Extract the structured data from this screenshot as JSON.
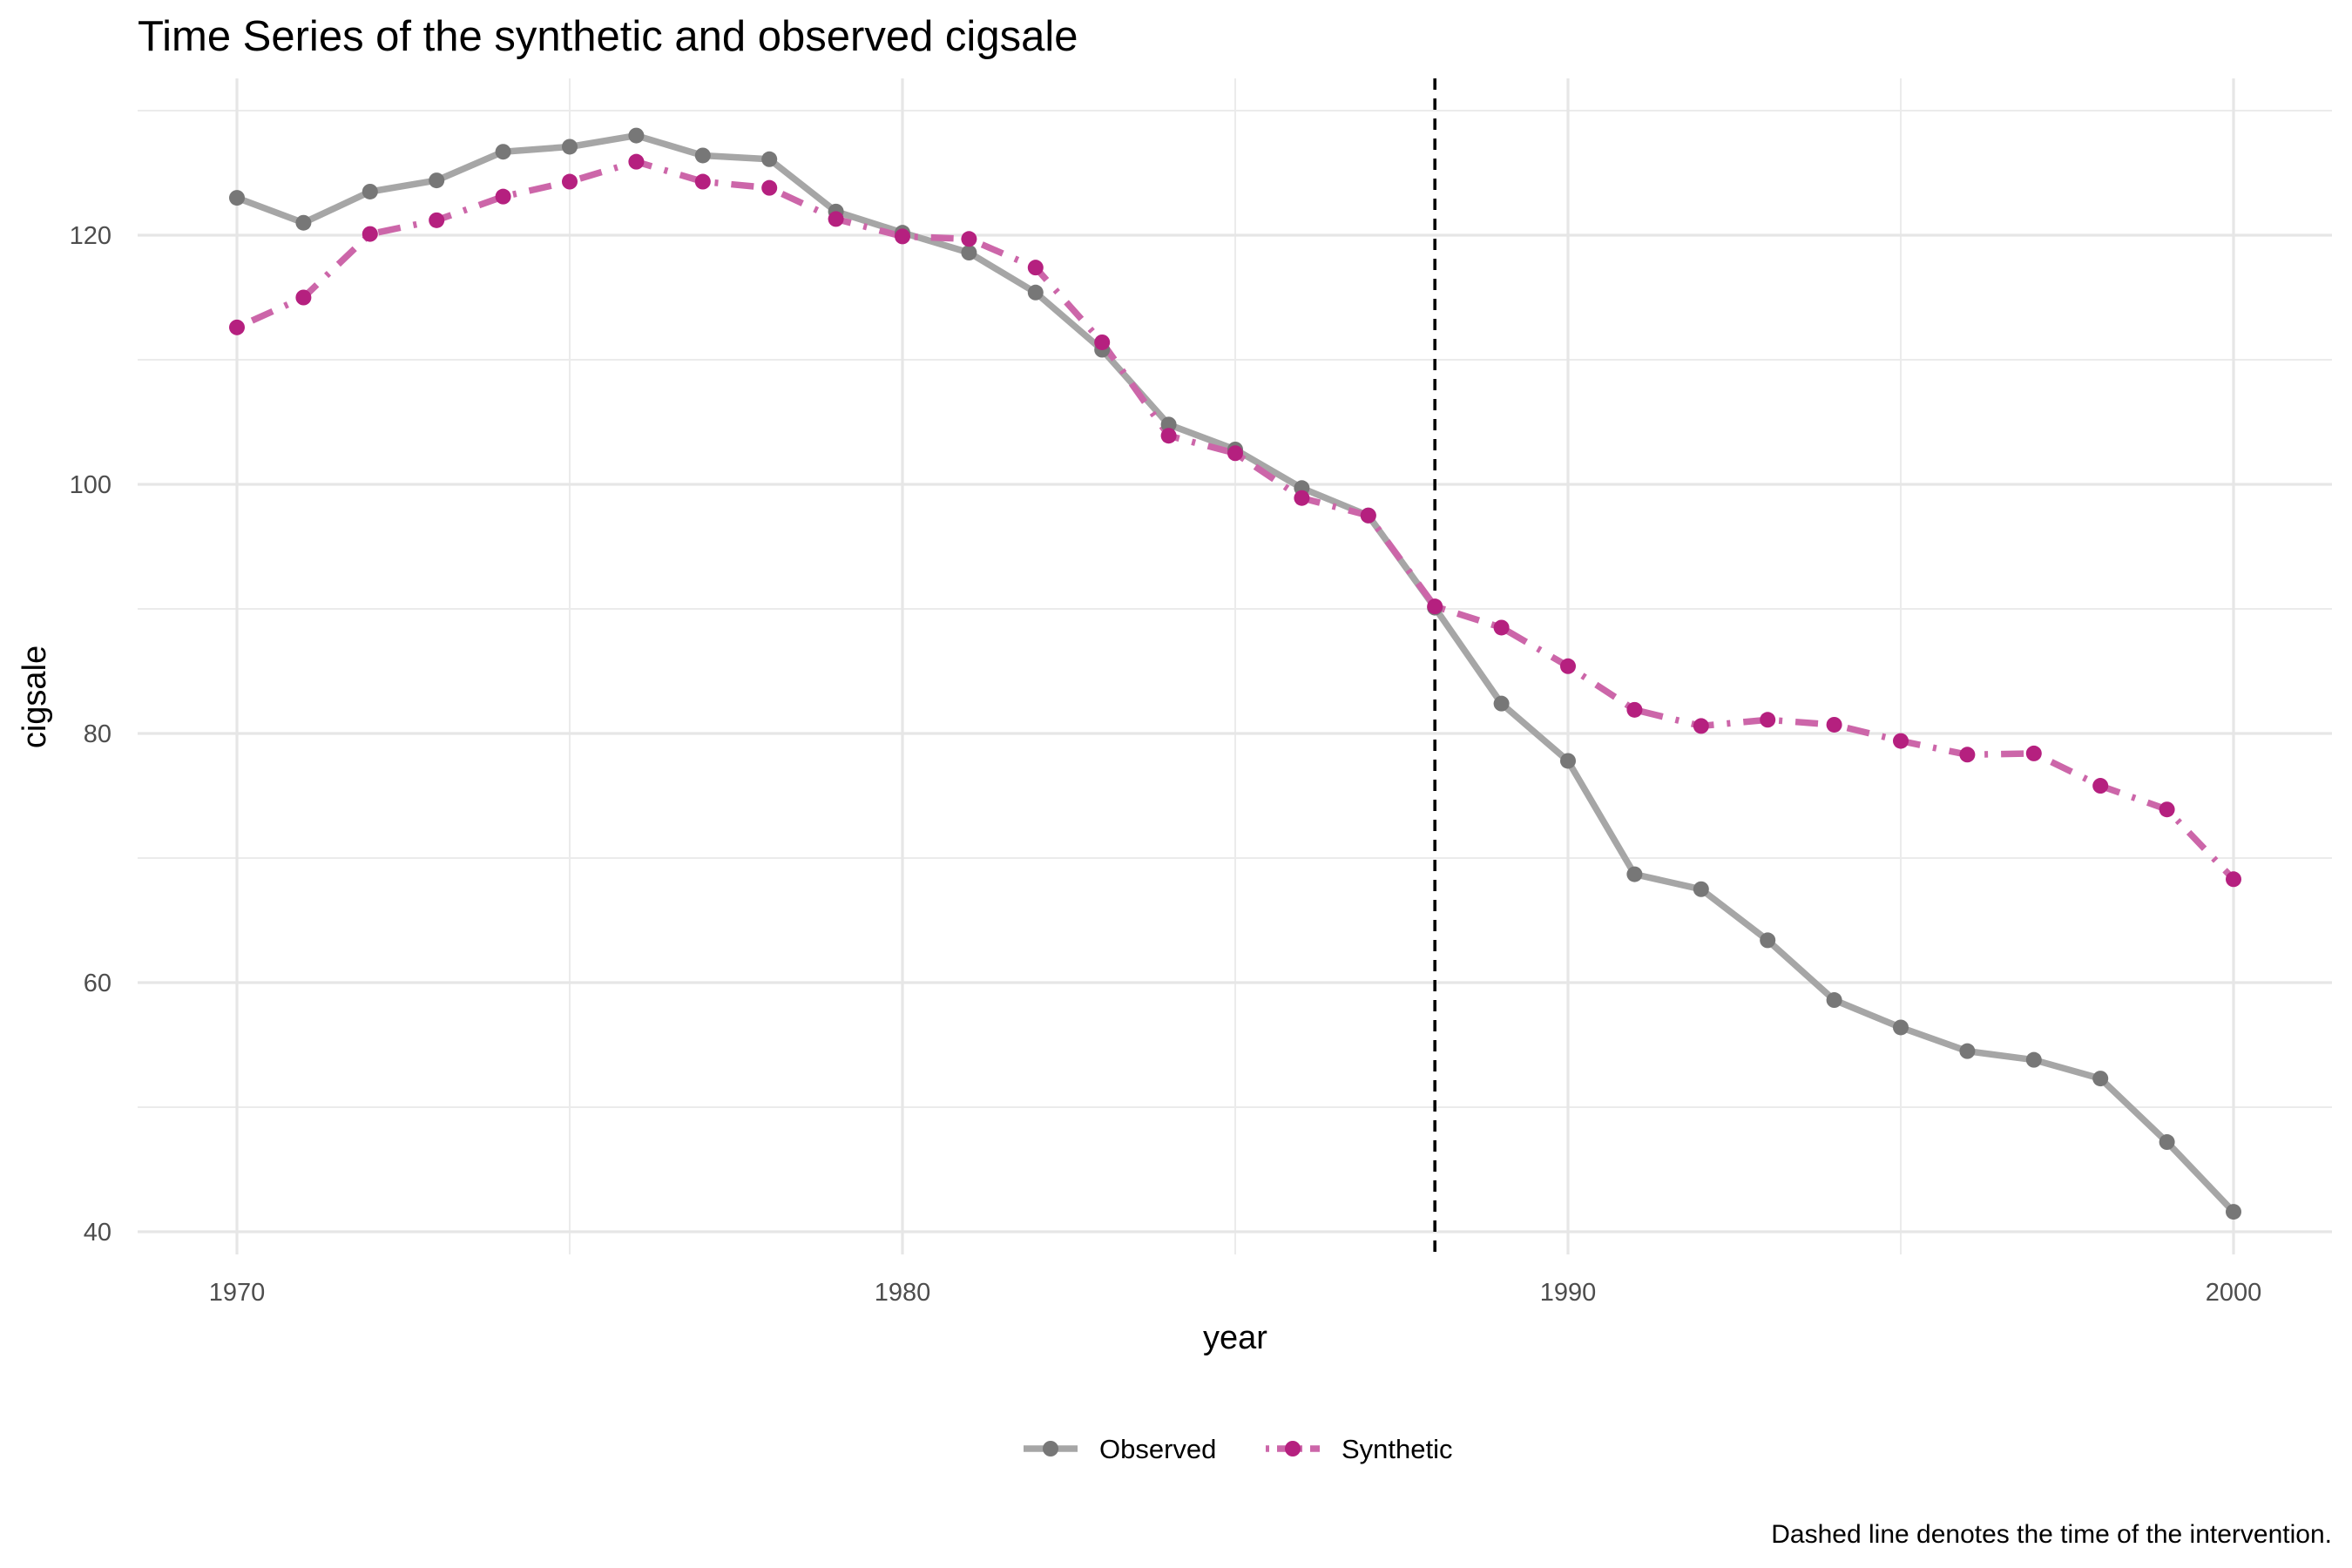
{
  "chart_data": {
    "type": "line",
    "title": "Time Series of the synthetic and observed cigsale",
    "xlabel": "year",
    "ylabel": "cigsale",
    "caption": "Dashed line denotes the time of the intervention.",
    "xlim": [
      1968.5,
      2001.5
    ],
    "ylim": [
      38.5,
      132
    ],
    "x_ticks": [
      1970,
      1980,
      1990,
      2000
    ],
    "y_ticks": [
      40,
      60,
      80,
      100,
      120
    ],
    "grid": true,
    "intervention_year": 1988,
    "legend_position": "bottom",
    "x": [
      1970,
      1971,
      1972,
      1973,
      1974,
      1975,
      1976,
      1977,
      1978,
      1979,
      1980,
      1981,
      1982,
      1983,
      1984,
      1985,
      1986,
      1987,
      1988,
      1989,
      1990,
      1991,
      1992,
      1993,
      1994,
      1995,
      1996,
      1997,
      1998,
      1999,
      2000
    ],
    "series": [
      {
        "name": "Observed",
        "color": "#a6a6a6",
        "point_color": "#777777",
        "line_style": "solid",
        "values": [
          123.0,
          121.0,
          123.5,
          124.4,
          126.7,
          127.1,
          128.0,
          126.4,
          126.1,
          121.9,
          120.2,
          118.6,
          115.4,
          110.8,
          104.8,
          102.8,
          99.7,
          97.5,
          90.1,
          82.4,
          77.8,
          68.7,
          67.5,
          63.4,
          58.6,
          56.4,
          54.5,
          53.8,
          52.3,
          47.2,
          41.6
        ]
      },
      {
        "name": "Synthetic",
        "color": "#cc66a9",
        "point_color": "#b5207f",
        "line_style": "dotdash",
        "values": [
          112.6,
          115.0,
          120.1,
          121.2,
          123.1,
          124.3,
          125.9,
          124.3,
          123.8,
          121.3,
          119.9,
          119.7,
          117.4,
          111.4,
          103.9,
          102.5,
          98.9,
          97.5,
          90.2,
          88.5,
          85.4,
          81.9,
          80.6,
          81.1,
          80.7,
          79.4,
          78.3,
          78.4,
          75.8,
          73.9,
          68.3
        ]
      }
    ]
  }
}
